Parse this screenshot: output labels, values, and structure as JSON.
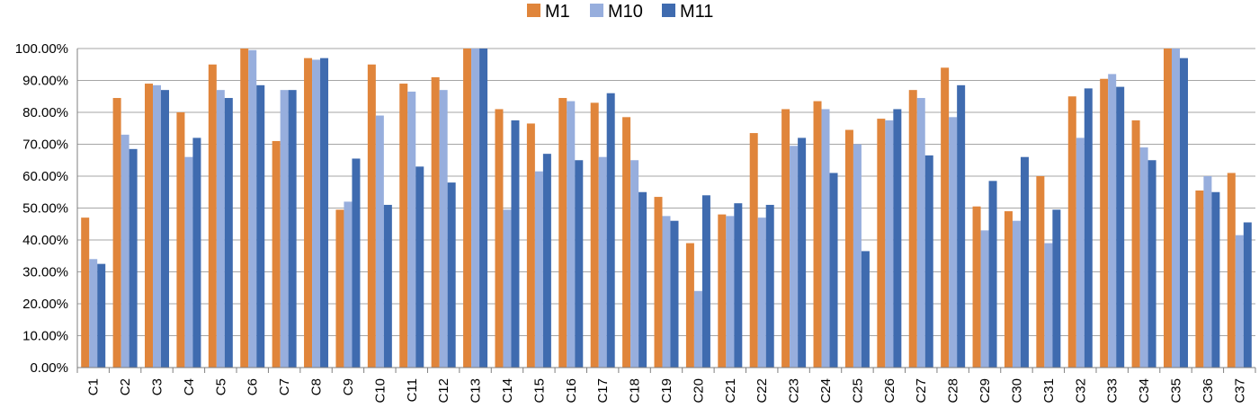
{
  "chart_data": {
    "type": "bar",
    "title": "",
    "xlabel": "",
    "ylabel": "",
    "ylim": [
      0,
      100
    ],
    "yticks": [
      "0.00%",
      "10.00%",
      "20.00%",
      "30.00%",
      "40.00%",
      "50.00%",
      "60.00%",
      "70.00%",
      "80.00%",
      "90.00%",
      "100.00%"
    ],
    "grid": true,
    "legend_position": "top-center",
    "categories": [
      "C1",
      "C2",
      "C3",
      "C4",
      "C5",
      "C6",
      "C7",
      "C8",
      "C9",
      "C10",
      "C11",
      "C12",
      "C13",
      "C14",
      "C15",
      "C16",
      "C17",
      "C18",
      "C19",
      "C20",
      "C21",
      "C22",
      "C23",
      "C24",
      "C25",
      "C26",
      "C27",
      "C28",
      "C29",
      "C30",
      "C31",
      "C32",
      "C33",
      "C34",
      "C35",
      "C36",
      "C37"
    ],
    "series": [
      {
        "name": "M1",
        "color": "#E0853B",
        "values": [
          47,
          84.5,
          89,
          80,
          95,
          100,
          71,
          97,
          49.5,
          95,
          89,
          91,
          100,
          81,
          76.5,
          84.5,
          83,
          78.5,
          53.5,
          39,
          48,
          73.5,
          81,
          83.5,
          74.5,
          78,
          87,
          94,
          50.5,
          49,
          60,
          85,
          90.5,
          77.5,
          100,
          55.5,
          61
        ]
      },
      {
        "name": "M10",
        "color": "#97AEDD",
        "values": [
          34,
          73,
          88.5,
          66,
          87,
          99.5,
          87,
          96.5,
          52,
          79,
          86.5,
          87,
          100,
          49.5,
          61.5,
          83.5,
          66,
          65,
          47.5,
          24,
          47.5,
          47,
          69.5,
          81,
          70,
          77.5,
          84.5,
          78.5,
          43,
          46,
          39,
          72,
          92,
          69,
          100,
          60,
          41.5
        ]
      },
      {
        "name": "M11",
        "color": "#3F6BAF",
        "values": [
          32.5,
          68.5,
          87,
          72,
          84.5,
          88.5,
          87,
          97,
          65.5,
          51,
          63,
          58,
          100,
          77.5,
          67,
          65,
          86,
          55,
          46,
          54,
          51.5,
          51,
          72,
          61,
          36.5,
          81,
          66.5,
          88.5,
          58.5,
          66,
          49.5,
          87.5,
          88,
          65,
          97,
          55,
          45.5
        ]
      }
    ]
  }
}
